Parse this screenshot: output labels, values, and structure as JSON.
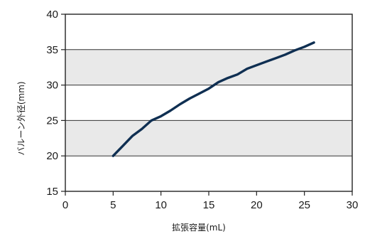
{
  "chart_data": {
    "type": "line",
    "xlabel": "拡張容量(mL)",
    "ylabel": "バルーン外径(mm)",
    "xlim": [
      0,
      30
    ],
    "ylim": [
      15,
      40
    ],
    "x_ticks": [
      0,
      5,
      10,
      15,
      20,
      25,
      30
    ],
    "y_ticks": [
      15,
      20,
      25,
      30,
      35,
      40
    ],
    "grid": "horizontal",
    "banding": true,
    "series": [
      {
        "color": "#0f2f52",
        "x": [
          5,
          6,
          7,
          8,
          9,
          10,
          11,
          12,
          13,
          14,
          15,
          16,
          17,
          18,
          19,
          20,
          21,
          22,
          23,
          24,
          25,
          26
        ],
        "y": [
          20,
          21.4,
          22.8,
          23.8,
          25.0,
          25.6,
          26.4,
          27.3,
          28.1,
          28.8,
          29.5,
          30.4,
          31.0,
          31.5,
          32.3,
          32.8,
          33.3,
          33.8,
          34.3,
          34.9,
          35.4,
          36.0
        ]
      }
    ],
    "colors": {
      "band": "#e9e9e9",
      "plot_bg": "#ffffff",
      "frame": "#222222",
      "gridline": "#333333"
    }
  }
}
